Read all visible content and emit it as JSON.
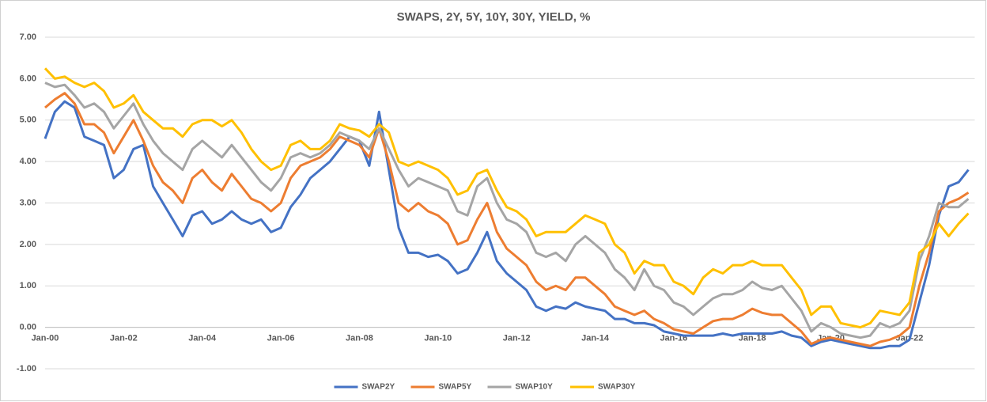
{
  "chart_data": {
    "type": "line",
    "title": "SWAPS, 2Y, 5Y, 10Y, 30Y, YIELD, %",
    "categories": [
      "Jan-00",
      null,
      null,
      null,
      null,
      null,
      null,
      null,
      "Jan-02",
      null,
      null,
      null,
      null,
      null,
      null,
      null,
      "Jan-04",
      null,
      null,
      null,
      null,
      null,
      null,
      null,
      "Jan-06",
      null,
      null,
      null,
      null,
      null,
      null,
      null,
      "Jan-08",
      null,
      null,
      null,
      null,
      null,
      null,
      null,
      "Jan-10",
      null,
      null,
      null,
      null,
      null,
      null,
      null,
      "Jan-12",
      null,
      null,
      null,
      null,
      null,
      null,
      null,
      "Jan-14",
      null,
      null,
      null,
      null,
      null,
      null,
      null,
      "Jan-16",
      null,
      null,
      null,
      null,
      null,
      null,
      null,
      "Jan-18",
      null,
      null,
      null,
      null,
      null,
      null,
      null,
      "Jan-20",
      null,
      null,
      null,
      null,
      null,
      null,
      null,
      "Jan-22",
      null,
      null,
      null,
      null,
      null,
      null
    ],
    "series": [
      {
        "name": "SWAP2Y",
        "color": "#4472c4",
        "values": [
          4.55,
          5.2,
          5.45,
          5.3,
          4.6,
          4.5,
          4.4,
          3.6,
          3.8,
          4.3,
          4.4,
          3.4,
          3.0,
          2.6,
          2.2,
          2.7,
          2.8,
          2.5,
          2.6,
          2.8,
          2.6,
          2.5,
          2.6,
          2.3,
          2.4,
          2.9,
          3.2,
          3.6,
          3.8,
          4.0,
          4.3,
          4.6,
          4.5,
          3.9,
          5.2,
          3.8,
          2.4,
          1.8,
          1.8,
          1.7,
          1.75,
          1.6,
          1.3,
          1.4,
          1.8,
          2.3,
          1.6,
          1.3,
          1.1,
          0.9,
          0.5,
          0.4,
          0.5,
          0.45,
          0.6,
          0.5,
          0.45,
          0.4,
          0.2,
          0.2,
          0.1,
          0.1,
          0.05,
          -0.1,
          -0.15,
          -0.2,
          -0.2,
          -0.2,
          -0.2,
          -0.15,
          -0.2,
          -0.15,
          -0.15,
          -0.15,
          -0.15,
          -0.1,
          -0.2,
          -0.25,
          -0.45,
          -0.35,
          -0.3,
          -0.35,
          -0.4,
          -0.45,
          -0.5,
          -0.5,
          -0.45,
          -0.45,
          -0.3,
          0.6,
          1.5,
          2.7,
          3.4,
          3.5,
          3.8
        ]
      },
      {
        "name": "SWAP5Y",
        "color": "#ed7d31",
        "values": [
          5.3,
          5.5,
          5.65,
          5.4,
          4.9,
          4.9,
          4.7,
          4.2,
          4.6,
          5.0,
          4.5,
          3.9,
          3.5,
          3.3,
          3.0,
          3.6,
          3.8,
          3.5,
          3.3,
          3.7,
          3.4,
          3.1,
          3.0,
          2.8,
          3.0,
          3.6,
          3.9,
          4.0,
          4.1,
          4.3,
          4.6,
          4.5,
          4.4,
          4.1,
          4.8,
          4.0,
          3.0,
          2.8,
          3.0,
          2.8,
          2.7,
          2.5,
          2.0,
          2.1,
          2.6,
          3.0,
          2.3,
          1.9,
          1.7,
          1.5,
          1.1,
          0.9,
          1.0,
          0.9,
          1.2,
          1.2,
          1.0,
          0.8,
          0.5,
          0.4,
          0.3,
          0.4,
          0.2,
          0.1,
          -0.05,
          -0.1,
          -0.15,
          0.0,
          0.15,
          0.2,
          0.2,
          0.3,
          0.45,
          0.35,
          0.3,
          0.3,
          0.1,
          -0.1,
          -0.4,
          -0.3,
          -0.25,
          -0.3,
          -0.35,
          -0.4,
          -0.45,
          -0.35,
          -0.3,
          -0.2,
          0.0,
          1.0,
          1.8,
          2.8,
          3.0,
          3.1,
          3.25
        ]
      },
      {
        "name": "SWAP10Y",
        "color": "#a5a5a5",
        "values": [
          5.9,
          5.8,
          5.85,
          5.6,
          5.3,
          5.4,
          5.2,
          4.8,
          5.1,
          5.4,
          4.9,
          4.5,
          4.2,
          4.0,
          3.8,
          4.3,
          4.5,
          4.3,
          4.1,
          4.4,
          4.1,
          3.8,
          3.5,
          3.3,
          3.6,
          4.1,
          4.2,
          4.1,
          4.2,
          4.4,
          4.7,
          4.6,
          4.5,
          4.3,
          4.8,
          4.3,
          3.8,
          3.4,
          3.6,
          3.5,
          3.4,
          3.3,
          2.8,
          2.7,
          3.4,
          3.6,
          3.0,
          2.6,
          2.5,
          2.3,
          1.8,
          1.7,
          1.8,
          1.6,
          2.0,
          2.2,
          2.0,
          1.8,
          1.4,
          1.2,
          0.9,
          1.4,
          1.0,
          0.9,
          0.6,
          0.5,
          0.3,
          0.5,
          0.7,
          0.8,
          0.8,
          0.9,
          1.1,
          0.95,
          0.9,
          1.0,
          0.7,
          0.4,
          -0.1,
          0.1,
          0.0,
          -0.15,
          -0.2,
          -0.25,
          -0.2,
          0.1,
          0.0,
          0.1,
          0.4,
          1.6,
          2.2,
          3.0,
          2.9,
          2.9,
          3.1
        ]
      },
      {
        "name": "SWAP30Y",
        "color": "#ffc000",
        "values": [
          6.25,
          6.0,
          6.05,
          5.9,
          5.8,
          5.9,
          5.7,
          5.3,
          5.4,
          5.6,
          5.2,
          5.0,
          4.8,
          4.8,
          4.6,
          4.9,
          5.0,
          5.0,
          4.85,
          5.0,
          4.7,
          4.3,
          4.0,
          3.8,
          3.9,
          4.4,
          4.5,
          4.3,
          4.3,
          4.5,
          4.9,
          4.8,
          4.75,
          4.6,
          4.9,
          4.7,
          4.0,
          3.9,
          4.0,
          3.9,
          3.8,
          3.6,
          3.2,
          3.3,
          3.7,
          3.8,
          3.3,
          2.9,
          2.8,
          2.6,
          2.2,
          2.3,
          2.3,
          2.3,
          2.5,
          2.7,
          2.6,
          2.5,
          2.0,
          1.8,
          1.3,
          1.6,
          1.5,
          1.5,
          1.1,
          1.0,
          0.8,
          1.2,
          1.4,
          1.3,
          1.5,
          1.5,
          1.6,
          1.5,
          1.5,
          1.5,
          1.2,
          0.9,
          0.3,
          0.5,
          0.5,
          0.1,
          0.05,
          0.0,
          0.1,
          0.4,
          0.35,
          0.3,
          0.6,
          1.8,
          2.0,
          2.5,
          2.2,
          2.5,
          2.75
        ]
      }
    ],
    "ylim": [
      -1,
      7
    ],
    "yticks": [
      {
        "value": -1,
        "label": "-1.00"
      },
      {
        "value": 0,
        "label": "0.00"
      },
      {
        "value": 1,
        "label": "1.00"
      },
      {
        "value": 2,
        "label": "2.00"
      },
      {
        "value": 3,
        "label": "3.00"
      },
      {
        "value": 4,
        "label": "4.00"
      },
      {
        "value": 5,
        "label": "5.00"
      },
      {
        "value": 6,
        "label": "6.00"
      },
      {
        "value": 7,
        "label": "7.00"
      }
    ],
    "grid": true,
    "legend": "bottom"
  }
}
